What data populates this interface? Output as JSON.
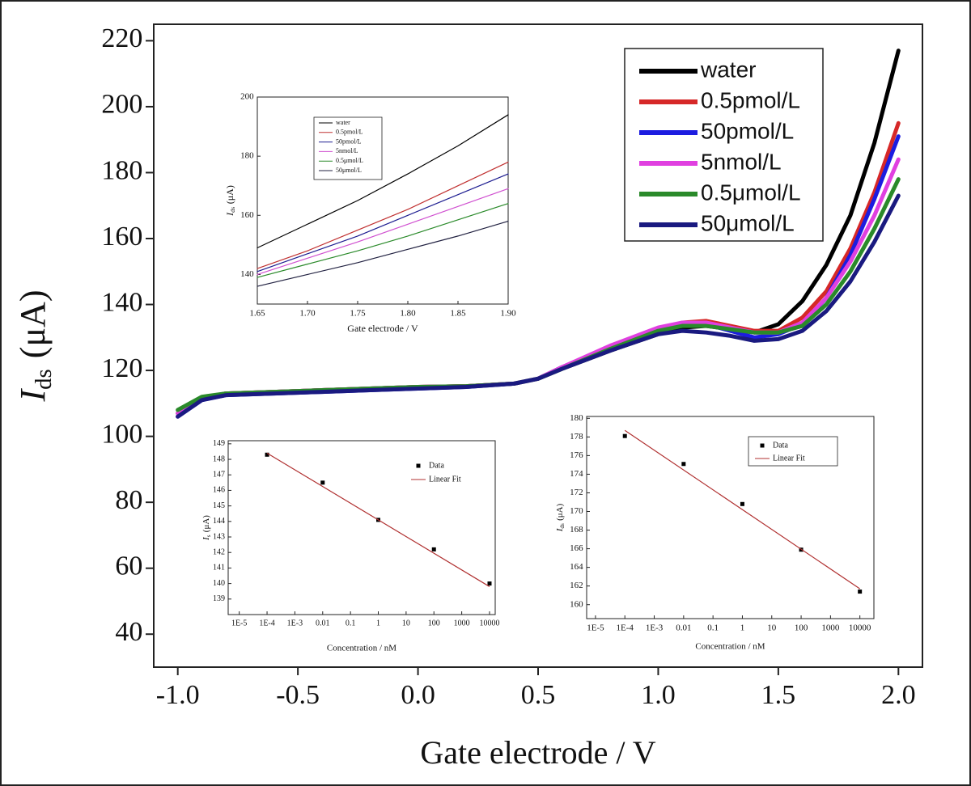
{
  "chart_data": [
    {
      "type": "line",
      "xlabel": "Gate electrode / V",
      "ylabel": {
        "symbol": "I",
        "subscript": "ds",
        "unit": "(μA)"
      },
      "xlim": [
        -1.1,
        2.1
      ],
      "ylim": [
        30,
        225
      ],
      "xticks": [
        {
          "value": -1,
          "label": "-1.0"
        },
        -0.5,
        {
          "value": 0,
          "label": "0.0"
        },
        0.5,
        {
          "value": 1,
          "label": "1.0"
        },
        1.5,
        {
          "value": 2,
          "label": "2.0"
        }
      ],
      "yticks": [
        40,
        60,
        80,
        100,
        120,
        140,
        160,
        180,
        200,
        220
      ],
      "legend": "top-right",
      "x": [
        -1.0,
        -0.9,
        -0.8,
        -0.6,
        -0.4,
        -0.2,
        0.0,
        0.2,
        0.4,
        0.5,
        0.6,
        0.8,
        1.0,
        1.1,
        1.2,
        1.3,
        1.4,
        1.5,
        1.6,
        1.7,
        1.8,
        1.9,
        2.0
      ],
      "series": [
        {
          "name": "water",
          "color": "#000000",
          "values": [
            107,
            111.5,
            113,
            113.5,
            114,
            114.5,
            115,
            115.2,
            116,
            117.5,
            120.5,
            126,
            131,
            133,
            133.5,
            132.5,
            131.5,
            134,
            141,
            152,
            167,
            189,
            217
          ]
        },
        {
          "name": "0.5pmol/L",
          "color": "#d62828",
          "values": [
            106,
            111.5,
            113,
            113.5,
            114,
            114.5,
            115,
            115.2,
            116,
            117.5,
            121,
            127,
            132,
            134.5,
            135,
            133.5,
            132,
            132,
            136,
            144,
            157,
            174,
            195
          ]
        },
        {
          "name": "50pmol/L",
          "color": "#1c1ce0",
          "values": [
            106,
            111,
            112.5,
            113,
            113.5,
            114,
            114.5,
            115,
            116,
            117.5,
            121,
            127,
            132.5,
            134,
            134,
            132,
            130,
            131,
            134,
            142,
            155,
            172,
            191
          ]
        },
        {
          "name": "5nmol/L",
          "color": "#e040e0",
          "values": [
            107,
            111.5,
            113,
            113.5,
            114,
            114.5,
            115,
            115.2,
            116,
            117.5,
            121,
            127.5,
            133,
            134.5,
            134.5,
            133,
            131.5,
            131.5,
            134.5,
            142,
            153,
            167,
            184
          ]
        },
        {
          "name": "0.5μmol/L",
          "color": "#2a8a2a",
          "values": [
            108,
            112,
            113,
            113.5,
            114,
            114.5,
            115,
            115.2,
            116,
            117.5,
            120.5,
            126.5,
            132,
            133.5,
            133.5,
            132.5,
            131.5,
            131.5,
            133.5,
            140,
            150,
            163,
            178
          ]
        },
        {
          "name": "50μmol/L",
          "color": "#1a1a80",
          "values": [
            106,
            111,
            112.5,
            113,
            113.5,
            114,
            114.5,
            115,
            116,
            117.5,
            120.5,
            126,
            131,
            132,
            131.5,
            130.5,
            129,
            129.5,
            132,
            138,
            147,
            159,
            173
          ]
        }
      ]
    },
    {
      "type": "line",
      "xlabel": "Gate electrode / V",
      "ylabel": {
        "symbol": "I",
        "subscript": "ds",
        "unit": "(μA)"
      },
      "xlim": [
        1.65,
        1.9
      ],
      "ylim": [
        130,
        200
      ],
      "xticks": [
        1.65,
        {
          "value": 1.7,
          "label": "1.70"
        },
        1.75,
        {
          "value": 1.8,
          "label": "1.80"
        },
        1.85,
        {
          "value": 1.9,
          "label": "1.90"
        }
      ],
      "yticks": [
        140,
        160,
        180,
        200
      ],
      "legend": "top-left",
      "x": [
        1.65,
        1.7,
        1.75,
        1.8,
        1.85,
        1.9
      ],
      "series": [
        {
          "name": "water",
          "color": "#000000",
          "values": [
            149,
            157,
            165,
            174,
            183.5,
            194
          ]
        },
        {
          "name": "0.5pmol/L",
          "color": "#c03030",
          "values": [
            142,
            148,
            155,
            162,
            170,
            178
          ]
        },
        {
          "name": "50pmol/L",
          "color": "#1c1c90",
          "values": [
            141,
            147,
            153,
            160,
            167,
            174
          ]
        },
        {
          "name": "5nmol/L",
          "color": "#d050d0",
          "values": [
            140,
            145.5,
            151,
            157,
            163,
            169
          ]
        },
        {
          "name": "0.5μmol/L",
          "color": "#2a8a2a",
          "values": [
            139,
            143.5,
            148,
            153,
            158.5,
            164
          ]
        },
        {
          "name": "50μmol/L",
          "color": "#202040",
          "values": [
            136,
            140,
            144,
            148.5,
            153,
            158
          ]
        }
      ]
    },
    {
      "type": "scatter",
      "xlabel": "Concentration / nM",
      "ylabel": {
        "symbol": "I",
        "subscript": "s",
        "unit": "(μA)"
      },
      "xscale": "log",
      "xlim": [
        4e-06,
        16000
      ],
      "ylim": [
        138,
        149.2
      ],
      "xticks": [
        {
          "value": 1e-05,
          "label": "1E-5"
        },
        {
          "value": 0.0001,
          "label": "1E-4"
        },
        {
          "value": 0.001,
          "label": "1E-3"
        },
        0.01,
        0.1,
        1,
        10,
        100,
        1000,
        10000
      ],
      "yticks": [
        139,
        140,
        141,
        142,
        143,
        144,
        145,
        146,
        147,
        148,
        149
      ],
      "legend": "top-right",
      "series": [
        {
          "name": "Data",
          "color": "#000000",
          "style": "markers",
          "x": [
            0.0001,
            0.01,
            1,
            100,
            10000
          ],
          "values": [
            148.3,
            146.5,
            144.1,
            142.2,
            140.0
          ]
        },
        {
          "name": "Linear Fit",
          "color": "#b03030",
          "style": "line",
          "x": [
            0.0001,
            10000
          ],
          "values": [
            148.4,
            139.8
          ]
        }
      ]
    },
    {
      "type": "scatter",
      "xlabel": "Concentration / nM",
      "ylabel": {
        "symbol": "I",
        "subscript": "ds",
        "unit": "(μA)"
      },
      "xscale": "log",
      "xlim": [
        5e-06,
        30000
      ],
      "ylim": [
        158.5,
        180.2
      ],
      "xticks": [
        {
          "value": 1e-05,
          "label": "1E-5"
        },
        {
          "value": 0.0001,
          "label": "1E-4"
        },
        {
          "value": 0.001,
          "label": "1E-3"
        },
        0.01,
        0.1,
        1,
        10,
        100,
        1000,
        10000
      ],
      "yticks": [
        160,
        162,
        164,
        166,
        168,
        170,
        172,
        174,
        176,
        178,
        180
      ],
      "legend": "top-right",
      "series": [
        {
          "name": "Data",
          "color": "#000000",
          "style": "markers",
          "x": [
            0.0001,
            0.01,
            1,
            100,
            10000
          ],
          "values": [
            178.1,
            175.1,
            170.8,
            165.9,
            161.4
          ]
        },
        {
          "name": "Linear Fit",
          "color": "#b03030",
          "style": "line",
          "x": [
            0.0001,
            10000
          ],
          "values": [
            178.7,
            161.7
          ]
        }
      ]
    }
  ]
}
